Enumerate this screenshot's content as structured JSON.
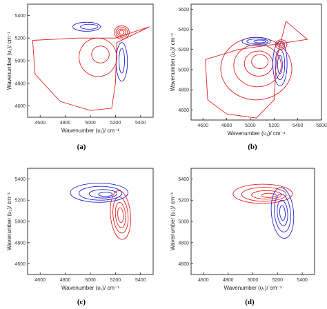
{
  "colors": {
    "positive": "#e02020",
    "negative": "#2020d0",
    "axis": "#000000"
  },
  "chart_data": [
    {
      "type": "contour",
      "panel_label": "(a)",
      "xlabel": "Wavenumber (υ₁)/ cm⁻¹",
      "ylabel": "Wavenumber (υ₂)/ cm⁻¹",
      "xlim": [
        4500,
        5500
      ],
      "ylim": [
        4500,
        5500
      ],
      "xticks": [
        4600,
        4800,
        5000,
        5200,
        5400
      ],
      "yticks": [
        4600,
        4800,
        5000,
        5200,
        5400
      ],
      "x_tick_labels": [
        "4600",
        "4800",
        "5000",
        "5200",
        "5400"
      ],
      "y_tick_labels": [
        "4600",
        "4800",
        "5000",
        "5200",
        "5400"
      ]
    },
    {
      "type": "contour",
      "panel_label": "(b)",
      "xlabel": "Wavenumber (υ₁)/ cm⁻¹",
      "ylabel": "Wavenumber (υ₂)/ cm⁻¹",
      "xlim": [
        4500,
        5600
      ],
      "ylim": [
        4500,
        5650
      ],
      "xticks": [
        4600,
        4800,
        5000,
        5200,
        5400,
        5600
      ],
      "yticks": [
        4600,
        4800,
        5000,
        5200,
        5400,
        5600
      ],
      "x_tick_labels": [
        "4600",
        "4800",
        "5000",
        "5200",
        "5400",
        "5600"
      ],
      "y_tick_labels": [
        "4600",
        "4800",
        "5000",
        "5200",
        "5400",
        "5600"
      ]
    },
    {
      "type": "contour",
      "panel_label": "(c)",
      "xlabel": "Wavenumber (υ₁)/ cm⁻¹",
      "ylabel": "Wavenumber (υ₂)/ cm⁻¹",
      "xlim": [
        4500,
        5500
      ],
      "ylim": [
        4500,
        5500
      ],
      "xticks": [
        4600,
        4800,
        5000,
        5200,
        5400
      ],
      "yticks": [
        4600,
        4800,
        5000,
        5200,
        5400
      ],
      "x_tick_labels": [
        "4600",
        "4800",
        "5000",
        "5200",
        "5400"
      ],
      "y_tick_labels": [
        "4600",
        "4800",
        "5000",
        "5200",
        "5400"
      ]
    },
    {
      "type": "contour",
      "panel_label": "(d)",
      "xlabel": "Wavenumber (υ₁)/ cm⁻¹",
      "ylabel": "Wavenumber (υ₂)/ cm⁻¹",
      "xlim": [
        4500,
        5500
      ],
      "ylim": [
        4500,
        5500
      ],
      "xticks": [
        4600,
        4800,
        5000,
        5200,
        5400
      ],
      "yticks": [
        4600,
        4800,
        5000,
        5200,
        5400
      ],
      "x_tick_labels": [
        "4600",
        "4800",
        "5000",
        "5200",
        "5400"
      ],
      "y_tick_labels": [
        "4600",
        "4800",
        "5000",
        "5200",
        "5400"
      ]
    }
  ]
}
